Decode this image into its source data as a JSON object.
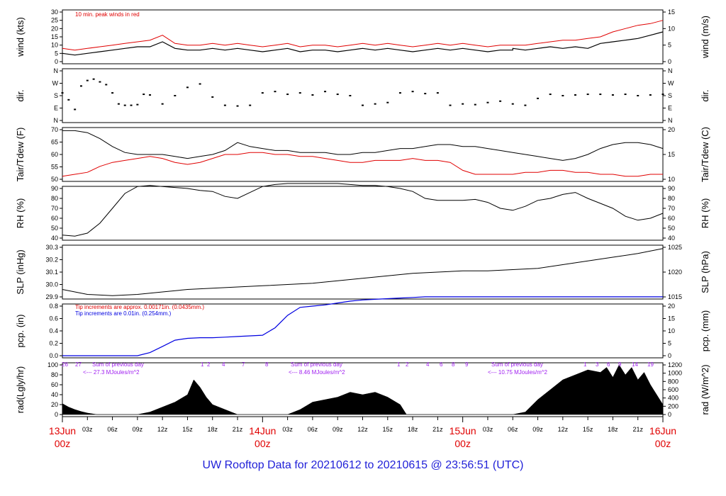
{
  "footer": {
    "title": "UW Rooftop Data for 20210612  to  20210615 @ 23:56:51  (UTC)"
  },
  "colors": {
    "red": "#e00000",
    "blue": "#0000e0",
    "purple": "#a020f0",
    "black": "#000000",
    "title_blue": "#1f1fd8"
  },
  "chart_data": [
    {
      "type": "line",
      "ylabel_left": "wind (kts)",
      "ylabel_right": "wind (m/s)",
      "ylim_left": [
        0,
        30
      ],
      "ylim_right": [
        0,
        15
      ],
      "yticks_left": [
        "0",
        "5",
        "10",
        "15",
        "20",
        "25",
        "30"
      ],
      "yticks_right": [
        "0",
        "5",
        "10",
        "15"
      ],
      "annotation": "10 min. peak winds in red",
      "series": [
        {
          "values_x": [
            0,
            2,
            4,
            6,
            8,
            10,
            12,
            14,
            16,
            18,
            20,
            22,
            24,
            26,
            28,
            30,
            32,
            34,
            36,
            38,
            40,
            42,
            44,
            46,
            48,
            50,
            52,
            54,
            56,
            58,
            60,
            62,
            64,
            66,
            68,
            70,
            72,
            72,
            74,
            76,
            78,
            80,
            82,
            84,
            86,
            88,
            90,
            92,
            94,
            96
          ],
          "values_y": [
            5,
            4,
            5,
            6,
            7,
            8,
            9,
            9,
            12,
            8,
            7,
            7,
            8,
            7,
            8,
            7,
            6,
            7,
            8,
            6,
            7,
            7,
            6,
            7,
            8,
            7,
            8,
            7,
            6,
            7,
            8,
            7,
            8,
            7,
            6,
            7,
            7,
            8,
            7,
            8,
            9,
            8,
            9,
            8,
            11,
            12,
            13,
            14,
            16,
            18
          ]
        },
        {
          "values_x": [
            0,
            2,
            4,
            6,
            8,
            10,
            12,
            14,
            16,
            18,
            20,
            22,
            24,
            26,
            28,
            30,
            32,
            34,
            36,
            38,
            40,
            42,
            44,
            46,
            48,
            50,
            52,
            54,
            56,
            58,
            60,
            62,
            64,
            66,
            68,
            70,
            72,
            74,
            76,
            78,
            80,
            82,
            84,
            86,
            88,
            90,
            92,
            94,
            96
          ],
          "values_y": [
            8,
            7,
            8,
            9,
            10,
            11,
            12,
            13,
            16,
            11,
            10,
            10,
            11,
            10,
            11,
            10,
            9,
            10,
            11,
            9,
            10,
            10,
            9,
            10,
            11,
            10,
            11,
            10,
            9,
            10,
            11,
            10,
            11,
            10,
            9,
            10,
            10,
            10,
            11,
            12,
            13,
            13,
            14,
            15,
            18,
            20,
            22,
            23,
            25
          ]
        }
      ]
    },
    {
      "type": "scatter",
      "ylabel_left": "dir.",
      "ylabel_right": "dir.",
      "yticks_left": [
        "N",
        "E",
        "S",
        "W",
        "N"
      ],
      "yticks_right": [
        "N",
        "E",
        "S",
        "W",
        "N"
      ],
      "values_x": [
        0,
        1,
        2,
        3,
        4,
        5,
        6,
        7,
        8,
        9,
        10,
        11,
        12,
        13,
        14,
        16,
        18,
        20,
        22,
        24,
        26,
        28,
        30,
        32,
        34,
        36,
        38,
        40,
        42,
        44,
        46,
        48,
        50,
        52,
        54,
        56,
        58,
        60,
        62,
        64,
        66,
        68,
        70,
        72,
        74,
        76,
        78,
        80,
        82,
        84,
        86,
        88,
        90,
        92,
        94,
        96
      ],
      "values_y": [
        200,
        150,
        80,
        250,
        290,
        300,
        280,
        260,
        200,
        120,
        110,
        110,
        115,
        190,
        185,
        120,
        180,
        240,
        265,
        170,
        110,
        105,
        110,
        200,
        210,
        190,
        200,
        185,
        210,
        190,
        180,
        110,
        120,
        130,
        200,
        210,
        195,
        200,
        110,
        120,
        115,
        130,
        140,
        120,
        110,
        160,
        190,
        180,
        185,
        190,
        190,
        185,
        190,
        180,
        185,
        190
      ]
    },
    {
      "type": "line",
      "ylabel_left": "Tair/Tdew (F)",
      "ylabel_right": "Tair/Tdew (C)",
      "ylim_left": [
        45,
        73
      ],
      "yticks_left": [
        "50",
        "55",
        "60",
        "65",
        "70"
      ],
      "yticks_right": [
        "10",
        "15",
        "20"
      ],
      "series": [
        {
          "values_x": [
            0,
            2,
            4,
            6,
            8,
            10,
            12,
            14,
            16,
            18,
            20,
            22,
            24,
            26,
            28,
            30,
            32,
            34,
            36,
            38,
            40,
            42,
            44,
            46,
            48,
            50,
            52,
            54,
            56,
            58,
            60,
            62,
            64,
            66,
            68,
            70,
            72,
            74,
            76,
            78,
            80,
            82,
            84,
            86,
            88,
            90,
            92,
            94,
            96
          ],
          "values_y": [
            72,
            72,
            71,
            68,
            64,
            61,
            60,
            60,
            60,
            59,
            58,
            59,
            60,
            62,
            66,
            64,
            63,
            62,
            62,
            61,
            61,
            61,
            60,
            60,
            61,
            61,
            62,
            63,
            63,
            64,
            65,
            65,
            64,
            64,
            63,
            62,
            61,
            60,
            59,
            58,
            57,
            58,
            60,
            63,
            65,
            66,
            66,
            65,
            63
          ]
        },
        {
          "values_x": [
            0,
            2,
            4,
            6,
            8,
            10,
            12,
            14,
            16,
            18,
            20,
            22,
            24,
            26,
            28,
            30,
            32,
            34,
            36,
            38,
            40,
            42,
            44,
            46,
            48,
            50,
            52,
            54,
            56,
            58,
            60,
            62,
            64,
            66,
            68,
            70,
            72,
            74,
            76,
            78,
            80,
            82,
            84,
            86,
            88,
            90,
            92,
            94,
            96
          ],
          "values_y": [
            49,
            50,
            51,
            54,
            56,
            57,
            58,
            59,
            58,
            56,
            55,
            56,
            58,
            60,
            60,
            61,
            61,
            60,
            60,
            59,
            59,
            58,
            57,
            56,
            56,
            57,
            57,
            57,
            58,
            57,
            57,
            56,
            52,
            50,
            50,
            50,
            50,
            51,
            51,
            52,
            52,
            51,
            51,
            50,
            50,
            49,
            49,
            50,
            50
          ]
        }
      ]
    },
    {
      "type": "line",
      "ylabel_left": "RH (%)",
      "ylabel_right": "RH (%)",
      "ylim_left": [
        40,
        95
      ],
      "yticks_left": [
        "40",
        "50",
        "60",
        "70",
        "80",
        "90"
      ],
      "yticks_right": [
        "40",
        "50",
        "60",
        "70",
        "80",
        "90"
      ],
      "series": [
        {
          "values_x": [
            0,
            2,
            4,
            6,
            8,
            10,
            12,
            14,
            16,
            18,
            20,
            22,
            24,
            26,
            28,
            30,
            32,
            34,
            36,
            38,
            40,
            42,
            44,
            46,
            48,
            50,
            52,
            54,
            56,
            58,
            60,
            62,
            64,
            66,
            68,
            70,
            72,
            74,
            76,
            78,
            80,
            82,
            84,
            86,
            88,
            90,
            92,
            94,
            96
          ],
          "values_y": [
            43,
            42,
            45,
            55,
            70,
            85,
            92,
            93,
            92,
            91,
            90,
            88,
            87,
            82,
            80,
            86,
            92,
            94,
            95,
            95,
            95,
            95,
            95,
            94,
            93,
            93,
            92,
            90,
            87,
            80,
            78,
            78,
            78,
            79,
            76,
            70,
            68,
            72,
            78,
            80,
            84,
            86,
            80,
            75,
            70,
            62,
            58,
            60,
            65
          ]
        }
      ]
    },
    {
      "type": "line",
      "ylabel_left": "SLP (inHg)",
      "ylabel_right": "SLP (hPa)",
      "ylim_left": [
        29.87,
        30.3
      ],
      "yticks_left": [
        "29.9",
        "30.0",
        "30.1",
        "30.2",
        "30.3"
      ],
      "yticks_right": [
        "1015",
        "1020",
        "1025"
      ],
      "series": [
        {
          "values_x": [
            0,
            4,
            8,
            12,
            16,
            20,
            24,
            28,
            32,
            36,
            40,
            44,
            48,
            52,
            56,
            60,
            64,
            68,
            72,
            76,
            80,
            84,
            88,
            92,
            96
          ],
          "values_y": [
            29.96,
            29.92,
            29.91,
            29.92,
            29.94,
            29.96,
            29.97,
            29.98,
            29.99,
            30.0,
            30.01,
            30.03,
            30.05,
            30.07,
            30.09,
            30.1,
            30.11,
            30.11,
            30.12,
            30.13,
            30.16,
            30.19,
            30.22,
            30.25,
            30.29
          ]
        }
      ]
    },
    {
      "type": "line",
      "ylabel_left": "pcp. (in)",
      "ylabel_right": "pcp. (mm)",
      "ylim_left": [
        0,
        0.95
      ],
      "yticks_left": [
        "0.0",
        "0.2",
        "0.4",
        "0.6",
        "0.8"
      ],
      "yticks_right": [
        "0",
        "5",
        "10",
        "15",
        "20"
      ],
      "annotations": [
        "Tip increments are approx. 0.00171in. (0.0435mm.)",
        "Tip increments are 0.01in. (0.254mm.)"
      ],
      "series": [
        {
          "values_x": [
            0,
            2,
            4,
            6,
            8,
            10,
            12,
            14,
            16,
            18,
            20,
            22,
            24,
            26,
            28,
            30,
            32,
            34,
            36,
            38,
            40,
            42,
            44,
            46,
            48,
            50,
            52,
            54,
            56,
            58,
            60,
            62,
            64,
            66,
            68,
            70,
            72,
            74,
            76,
            78,
            80,
            82,
            84,
            86,
            88,
            90,
            92,
            94,
            96
          ],
          "values_y": [
            0,
            0,
            0,
            0,
            0,
            0,
            0,
            0.05,
            0.15,
            0.25,
            0.28,
            0.29,
            0.29,
            0.3,
            0.31,
            0.32,
            0.33,
            0.45,
            0.65,
            0.78,
            0.8,
            0.82,
            0.85,
            0.88,
            0.9,
            0.91,
            0.92,
            0.93,
            0.94,
            0.95,
            0.95,
            0.95,
            0.95,
            0.95,
            0.95,
            0.95,
            0.95,
            0.95,
            0.95,
            0.95,
            0.95,
            0.95,
            0.95,
            0.95,
            0.95,
            0.95,
            0.95,
            0.95,
            0.95
          ]
        }
      ]
    },
    {
      "type": "area",
      "ylabel_left": "rad(Lgly/hr)",
      "ylabel_right": "rad (W/m^2)",
      "ylim_left": [
        0,
        100
      ],
      "yticks_left": [
        "0",
        "20",
        "40",
        "60",
        "80",
        "100"
      ],
      "yticks_right": [
        "0",
        "200",
        "400",
        "600",
        "800",
        "1000",
        "1200"
      ],
      "day_notes": [
        {
          "line1": "Sum of previous day",
          "line2": "<--- 27.3 MJoules/m^2"
        },
        {
          "line1": "Sum of previous day",
          "line2": "<--- 8.46 MJoules/m^2"
        },
        {
          "line1": "Sum of previous day",
          "line2": "<--- 10.75 MJoules/m^2"
        }
      ],
      "top_labels": [
        "26",
        "27",
        "1",
        "2",
        "4",
        "7",
        "8",
        "1",
        "2",
        "4",
        "6",
        "8",
        "9",
        "1",
        "3",
        "6",
        "9",
        "14",
        "19"
      ],
      "series": [
        {
          "values_x": [
            0,
            1,
            2,
            3,
            4,
            5,
            5.5,
            12,
            14,
            16,
            18,
            20,
            21,
            22,
            23,
            24,
            25,
            26,
            27,
            28,
            36,
            38,
            40,
            42,
            44,
            46,
            48,
            50,
            52,
            54,
            55,
            60,
            62,
            64,
            66,
            68,
            70,
            72,
            74,
            76,
            78,
            80,
            82,
            84,
            86,
            87,
            88,
            89,
            90,
            91,
            92,
            93,
            94,
            95,
            96
          ],
          "values_y": [
            22,
            15,
            10,
            6,
            3,
            1,
            0,
            0,
            5,
            15,
            25,
            40,
            70,
            55,
            35,
            20,
            15,
            10,
            5,
            0,
            0,
            10,
            25,
            30,
            35,
            45,
            40,
            45,
            35,
            20,
            0,
            0,
            0,
            0,
            0,
            0,
            0,
            0,
            5,
            30,
            50,
            70,
            80,
            90,
            85,
            95,
            75,
            100,
            80,
            95,
            70,
            85,
            60,
            40,
            20
          ]
        }
      ]
    }
  ],
  "x_axis": {
    "hour_labels": [
      "03z",
      "06z",
      "09z",
      "12z",
      "15z",
      "18z",
      "21z",
      "03z",
      "06z",
      "09z",
      "12z",
      "15z",
      "18z",
      "21z",
      "03z",
      "06z",
      "09z",
      "12z",
      "15z",
      "18z",
      "21z"
    ],
    "day_labels": [
      {
        "date": "13Jun",
        "hour": "00z"
      },
      {
        "date": "14Jun",
        "hour": "00z"
      },
      {
        "date": "15Jun",
        "hour": "00z"
      },
      {
        "date": "16Jun",
        "hour": "00z"
      }
    ]
  }
}
